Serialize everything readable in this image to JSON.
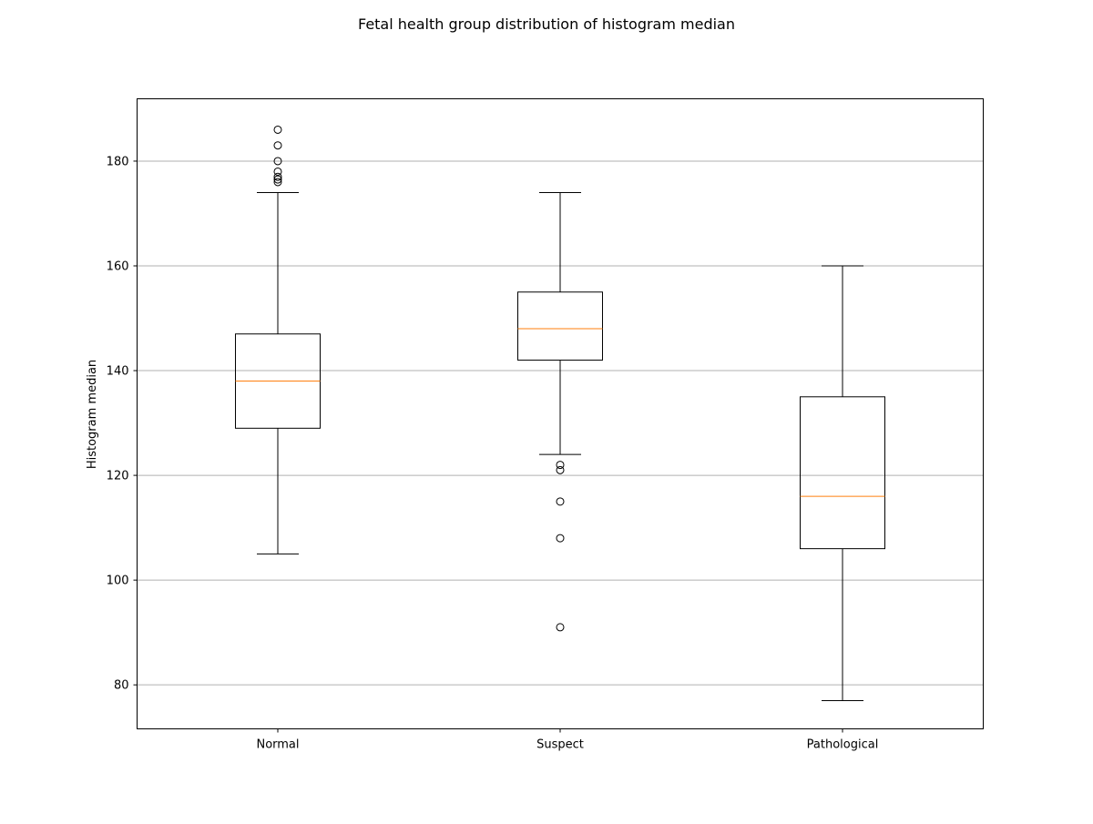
{
  "chart_data": {
    "type": "box",
    "title": "Fetal health group distribution of histogram median",
    "xlabel": "",
    "ylabel": "Histogram median",
    "ylim": [
      71.6,
      191.9
    ],
    "grid": "y",
    "yticks": [
      80,
      100,
      120,
      140,
      160,
      180
    ],
    "categories": [
      "Normal",
      "Suspect",
      "Pathological"
    ],
    "boxes": [
      {
        "category": "Normal",
        "whisker_low": 105,
        "q1": 129,
        "median": 138,
        "q3": 147,
        "whisker_high": 174,
        "outliers": [
          176,
          176.5,
          177,
          178,
          180,
          183,
          186
        ]
      },
      {
        "category": "Suspect",
        "whisker_low": 124,
        "q1": 142,
        "median": 148,
        "q3": 155,
        "whisker_high": 174,
        "outliers": [
          91,
          108,
          115,
          121,
          122
        ]
      },
      {
        "category": "Pathological",
        "whisker_low": 77,
        "q1": 106,
        "median": 116,
        "q3": 135,
        "whisker_high": 160,
        "outliers": []
      }
    ],
    "colors": {
      "box": "#000000",
      "median": "#ff7f0e",
      "grid": "#b0b0b0",
      "outlier_edge": "#000000"
    }
  }
}
